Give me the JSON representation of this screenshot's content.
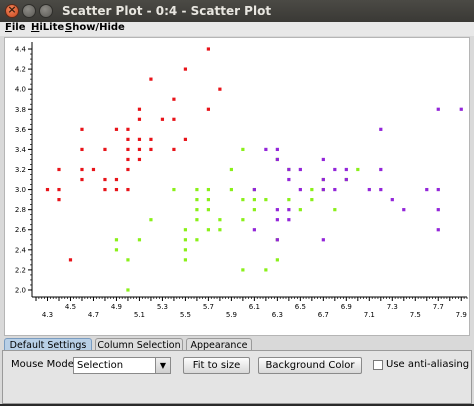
{
  "window": {
    "title": "Scatter Plot - 0:4 - Scatter Plot",
    "close_glyph": "×"
  },
  "menu": [
    {
      "label": "File",
      "mnemonic": "F",
      "rest": "ile"
    },
    {
      "label": "HiLite",
      "mnemonic": "H",
      "rest": "iLite"
    },
    {
      "label": "Show/Hide",
      "mnemonic": "S",
      "rest": "how/Hide"
    }
  ],
  "chart_data": {
    "type": "scatter",
    "xlim": [
      4.2,
      7.95
    ],
    "ylim": [
      1.95,
      4.45
    ],
    "x_ticks": [
      "4.3",
      "4.5",
      "4.7",
      "4.9",
      "5.1",
      "5.3",
      "5.5",
      "5.7",
      "5.9",
      "6.1",
      "6.3",
      "6.5",
      "6.7",
      "6.9",
      "7.1",
      "7.3",
      "7.5",
      "7.7",
      "7.9"
    ],
    "y_ticks": [
      "2.0",
      "2.2",
      "2.4",
      "2.6",
      "2.8",
      "3.0",
      "3.2",
      "3.4",
      "3.6",
      "3.8",
      "4.0",
      "4.2",
      "4.4"
    ],
    "grid": false,
    "series": [
      {
        "color": "#e8141a",
        "points": [
          [
            4.3,
            3.0
          ],
          [
            4.4,
            2.9
          ],
          [
            4.4,
            3.0
          ],
          [
            4.4,
            3.2
          ],
          [
            4.5,
            2.3
          ],
          [
            4.6,
            3.1
          ],
          [
            4.6,
            3.2
          ],
          [
            4.6,
            3.4
          ],
          [
            4.6,
            3.6
          ],
          [
            4.7,
            3.2
          ],
          [
            4.8,
            3.0
          ],
          [
            4.8,
            3.1
          ],
          [
            4.8,
            3.4
          ],
          [
            4.9,
            3.0
          ],
          [
            4.9,
            3.1
          ],
          [
            4.9,
            3.6
          ],
          [
            5.0,
            3.0
          ],
          [
            5.0,
            3.2
          ],
          [
            5.0,
            3.3
          ],
          [
            5.0,
            3.4
          ],
          [
            5.0,
            3.5
          ],
          [
            5.0,
            3.6
          ],
          [
            5.1,
            3.3
          ],
          [
            5.1,
            3.4
          ],
          [
            5.1,
            3.5
          ],
          [
            5.1,
            3.7
          ],
          [
            5.1,
            3.8
          ],
          [
            5.2,
            3.4
          ],
          [
            5.2,
            3.5
          ],
          [
            5.2,
            4.1
          ],
          [
            5.3,
            3.7
          ],
          [
            5.4,
            3.4
          ],
          [
            5.4,
            3.7
          ],
          [
            5.4,
            3.9
          ],
          [
            5.5,
            3.5
          ],
          [
            5.5,
            4.2
          ],
          [
            5.7,
            3.8
          ],
          [
            5.7,
            4.4
          ],
          [
            5.8,
            4.0
          ]
        ]
      },
      {
        "color": "#8af019",
        "points": [
          [
            4.9,
            2.4
          ],
          [
            4.9,
            2.5
          ],
          [
            5.0,
            2.0
          ],
          [
            5.0,
            2.3
          ],
          [
            5.1,
            2.5
          ],
          [
            5.2,
            2.7
          ],
          [
            5.4,
            3.0
          ],
          [
            5.5,
            2.3
          ],
          [
            5.5,
            2.4
          ],
          [
            5.5,
            2.5
          ],
          [
            5.5,
            2.6
          ],
          [
            5.6,
            2.5
          ],
          [
            5.6,
            2.7
          ],
          [
            5.6,
            2.8
          ],
          [
            5.6,
            2.9
          ],
          [
            5.6,
            3.0
          ],
          [
            5.7,
            2.6
          ],
          [
            5.7,
            2.8
          ],
          [
            5.7,
            2.9
          ],
          [
            5.7,
            3.0
          ],
          [
            5.8,
            2.6
          ],
          [
            5.8,
            2.7
          ],
          [
            5.9,
            3.0
          ],
          [
            5.9,
            3.2
          ],
          [
            6.0,
            2.2
          ],
          [
            6.0,
            2.7
          ],
          [
            6.0,
            2.9
          ],
          [
            6.0,
            3.4
          ],
          [
            6.1,
            2.8
          ],
          [
            6.1,
            2.9
          ],
          [
            6.1,
            3.0
          ],
          [
            6.2,
            2.2
          ],
          [
            6.2,
            2.9
          ],
          [
            6.3,
            2.3
          ],
          [
            6.3,
            2.5
          ],
          [
            6.3,
            3.3
          ],
          [
            6.4,
            2.9
          ],
          [
            6.4,
            3.2
          ],
          [
            6.5,
            2.8
          ],
          [
            6.6,
            2.9
          ],
          [
            6.6,
            3.0
          ],
          [
            6.7,
            3.0
          ],
          [
            6.7,
            3.1
          ],
          [
            6.8,
            2.8
          ],
          [
            6.9,
            3.1
          ],
          [
            7.0,
            3.2
          ]
        ]
      },
      {
        "color": "#9326d9",
        "points": [
          [
            6.1,
            2.6
          ],
          [
            6.1,
            3.0
          ],
          [
            6.2,
            3.4
          ],
          [
            6.3,
            2.5
          ],
          [
            6.3,
            2.7
          ],
          [
            6.3,
            2.8
          ],
          [
            6.3,
            3.3
          ],
          [
            6.3,
            3.4
          ],
          [
            6.4,
            2.7
          ],
          [
            6.4,
            2.8
          ],
          [
            6.4,
            3.1
          ],
          [
            6.4,
            3.2
          ],
          [
            6.5,
            3.0
          ],
          [
            6.5,
            3.2
          ],
          [
            6.7,
            2.5
          ],
          [
            6.7,
            3.0
          ],
          [
            6.7,
            3.1
          ],
          [
            6.7,
            3.3
          ],
          [
            6.8,
            3.0
          ],
          [
            6.8,
            3.2
          ],
          [
            6.9,
            3.1
          ],
          [
            6.9,
            3.2
          ],
          [
            7.1,
            3.0
          ],
          [
            7.2,
            3.0
          ],
          [
            7.2,
            3.2
          ],
          [
            7.2,
            3.6
          ],
          [
            7.3,
            2.9
          ],
          [
            7.4,
            2.8
          ],
          [
            7.6,
            3.0
          ],
          [
            7.7,
            2.6
          ],
          [
            7.7,
            2.8
          ],
          [
            7.7,
            3.0
          ],
          [
            7.7,
            3.8
          ],
          [
            7.9,
            3.8
          ]
        ]
      }
    ]
  },
  "tabs": [
    {
      "label": "Default Settings",
      "active": true
    },
    {
      "label": "Column Selection",
      "active": false
    },
    {
      "label": "Appearance",
      "active": false
    }
  ],
  "settings": {
    "mouse_mode_label": "Mouse Mode",
    "mouse_mode_value": "Selection",
    "fit_button": "Fit to size",
    "bg_button": "Background Color",
    "antialias_label": "Use anti-aliasing",
    "antialias_checked": false
  }
}
